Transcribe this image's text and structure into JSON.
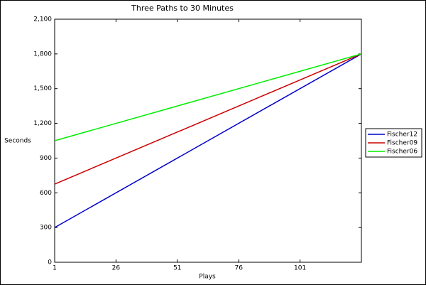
{
  "chart_data": {
    "type": "line",
    "title": "Three Paths to 30 Minutes",
    "x_label": "Plays",
    "y_label": "Seconds",
    "x": [
      1,
      126
    ],
    "series": [
      {
        "name": "Fischer12",
        "color": "#0000cc",
        "values": [
          300,
          1800
        ]
      },
      {
        "name": "Fischer09",
        "color": "#cc0000",
        "values": [
          675,
          1800
        ]
      },
      {
        "name": "Fischer06",
        "color": "#00ee00",
        "values": [
          1050,
          1800
        ]
      }
    ],
    "xlim": [
      1,
      126
    ],
    "xticks": [
      1,
      26,
      51,
      76,
      101
    ],
    "ylim": [
      0,
      2100
    ],
    "yticks": [
      0,
      300,
      600,
      900,
      {
        "value": 1200,
        "label": "1,200"
      },
      {
        "value": 1500,
        "label": "1,500"
      },
      {
        "value": 1800,
        "label": "1,800"
      },
      {
        "value": 2100,
        "label": "2,100"
      }
    ],
    "legend": "right"
  }
}
